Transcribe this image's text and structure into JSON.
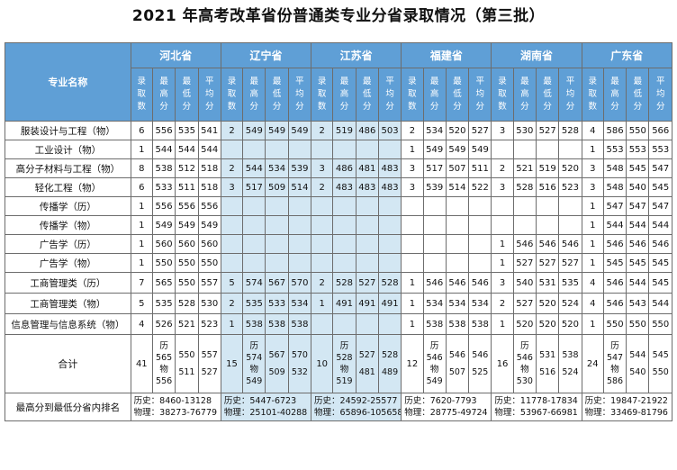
{
  "title": "2021 年高考改革省份普通类专业分省录取情况（第三批）",
  "header": {
    "corner": "专业名称",
    "provinces": [
      "河北省",
      "辽宁省",
      "江苏省",
      "福建省",
      "湖南省",
      "广东省"
    ],
    "subcols": [
      "录取数",
      "最高分",
      "最低分",
      "平均分"
    ]
  },
  "rows": [
    {
      "name": "服装设计与工程（物）",
      "cells": [
        [
          "6",
          "556",
          "535",
          "541"
        ],
        [
          "2",
          "549",
          "549",
          "549"
        ],
        [
          "2",
          "519",
          "486",
          "503"
        ],
        [
          "2",
          "534",
          "520",
          "527"
        ],
        [
          "3",
          "530",
          "527",
          "528"
        ],
        [
          "4",
          "586",
          "550",
          "566"
        ]
      ]
    },
    {
      "name": "工业设计（物）",
      "cells": [
        [
          "1",
          "544",
          "544",
          "544"
        ],
        [
          "",
          "",
          "",
          ""
        ],
        [
          "",
          "",
          "",
          ""
        ],
        [
          "1",
          "549",
          "549",
          "549"
        ],
        [
          "",
          "",
          "",
          ""
        ],
        [
          "1",
          "553",
          "553",
          "553"
        ]
      ]
    },
    {
      "name": "高分子材料与工程（物）",
      "cells": [
        [
          "8",
          "538",
          "512",
          "518"
        ],
        [
          "2",
          "544",
          "534",
          "539"
        ],
        [
          "3",
          "486",
          "481",
          "483"
        ],
        [
          "3",
          "517",
          "507",
          "511"
        ],
        [
          "2",
          "521",
          "519",
          "520"
        ],
        [
          "3",
          "548",
          "545",
          "547"
        ]
      ]
    },
    {
      "name": "轻化工程（物）",
      "cells": [
        [
          "6",
          "533",
          "511",
          "518"
        ],
        [
          "3",
          "517",
          "509",
          "514"
        ],
        [
          "2",
          "483",
          "483",
          "483"
        ],
        [
          "3",
          "539",
          "514",
          "522"
        ],
        [
          "3",
          "528",
          "516",
          "523"
        ],
        [
          "3",
          "548",
          "540",
          "545"
        ]
      ]
    },
    {
      "name": "传播学（历）",
      "cells": [
        [
          "1",
          "556",
          "556",
          "556"
        ],
        [
          "",
          "",
          "",
          ""
        ],
        [
          "",
          "",
          "",
          ""
        ],
        [
          "",
          "",
          "",
          ""
        ],
        [
          "",
          "",
          "",
          ""
        ],
        [
          "1",
          "547",
          "547",
          "547"
        ]
      ]
    },
    {
      "name": "传播学（物）",
      "cells": [
        [
          "1",
          "549",
          "549",
          "549"
        ],
        [
          "",
          "",
          "",
          ""
        ],
        [
          "",
          "",
          "",
          ""
        ],
        [
          "",
          "",
          "",
          ""
        ],
        [
          "",
          "",
          "",
          ""
        ],
        [
          "1",
          "544",
          "544",
          "544"
        ]
      ]
    },
    {
      "name": "广告学（历）",
      "cells": [
        [
          "1",
          "560",
          "560",
          "560"
        ],
        [
          "",
          "",
          "",
          ""
        ],
        [
          "",
          "",
          "",
          ""
        ],
        [
          "",
          "",
          "",
          ""
        ],
        [
          "1",
          "546",
          "546",
          "546"
        ],
        [
          "1",
          "546",
          "546",
          "546"
        ]
      ]
    },
    {
      "name": "广告学（物）",
      "cells": [
        [
          "1",
          "550",
          "550",
          "550"
        ],
        [
          "",
          "",
          "",
          ""
        ],
        [
          "",
          "",
          "",
          ""
        ],
        [
          "",
          "",
          "",
          ""
        ],
        [
          "1",
          "527",
          "527",
          "527"
        ],
        [
          "1",
          "545",
          "545",
          "545"
        ]
      ]
    },
    {
      "name": "工商管理类（历）",
      "cells": [
        [
          "7",
          "565",
          "550",
          "557"
        ],
        [
          "5",
          "574",
          "567",
          "570"
        ],
        [
          "2",
          "528",
          "527",
          "528"
        ],
        [
          "1",
          "546",
          "546",
          "546"
        ],
        [
          "3",
          "540",
          "531",
          "535"
        ],
        [
          "4",
          "546",
          "544",
          "545"
        ]
      ]
    },
    {
      "name": "工商管理类（物）",
      "cells": [
        [
          "5",
          "535",
          "528",
          "530"
        ],
        [
          "2",
          "535",
          "533",
          "534"
        ],
        [
          "1",
          "491",
          "491",
          "491"
        ],
        [
          "1",
          "534",
          "534",
          "534"
        ],
        [
          "2",
          "527",
          "520",
          "524"
        ],
        [
          "4",
          "546",
          "543",
          "544"
        ]
      ]
    },
    {
      "name": "信息管理与信息系统（物）",
      "cells": [
        [
          "4",
          "526",
          "521",
          "523"
        ],
        [
          "1",
          "538",
          "538",
          "538"
        ],
        [
          "",
          "",
          "",
          ""
        ],
        [
          "1",
          "538",
          "538",
          "538"
        ],
        [
          "1",
          "520",
          "520",
          "520"
        ],
        [
          "1",
          "550",
          "550",
          "550"
        ]
      ]
    }
  ],
  "total": {
    "name": "合计",
    "provinces": [
      {
        "count": "41",
        "hist": [
          "历",
          "565",
          "550",
          "557"
        ],
        "phys": [
          "物",
          "556",
          "511",
          "527"
        ]
      },
      {
        "count": "15",
        "hist": [
          "历",
          "574",
          "567",
          "570"
        ],
        "phys": [
          "物",
          "549",
          "509",
          "532"
        ]
      },
      {
        "count": "10",
        "hist": [
          "历",
          "528",
          "527",
          "528"
        ],
        "phys": [
          "物",
          "519",
          "481",
          "489"
        ]
      },
      {
        "count": "12",
        "hist": [
          "历",
          "546",
          "546",
          "546"
        ],
        "phys": [
          "物",
          "549",
          "507",
          "525"
        ]
      },
      {
        "count": "16",
        "hist": [
          "历",
          "546",
          "531",
          "538"
        ],
        "phys": [
          "物",
          "530",
          "516",
          "524"
        ]
      },
      {
        "count": "24",
        "hist": [
          "历",
          "547",
          "544",
          "545"
        ],
        "phys": [
          "物",
          "586",
          "540",
          "550"
        ]
      }
    ]
  },
  "rank": {
    "name": "最高分到最低分省内排名",
    "provinces": [
      {
        "hist": "历史：8460-13128",
        "phys": "物理：38273-76779"
      },
      {
        "hist": "历史：5447-6723",
        "phys": "物理：25101-40288"
      },
      {
        "hist": "历史：24592-25577",
        "phys": "物理：65896-105658"
      },
      {
        "hist": "历史：7620-7793",
        "phys": "物理：28775-49724"
      },
      {
        "hist": "历史：11778-17834",
        "phys": "物理：53967-66981"
      },
      {
        "hist": "历史：19847-21922",
        "phys": "物理：33469-81796"
      }
    ]
  }
}
